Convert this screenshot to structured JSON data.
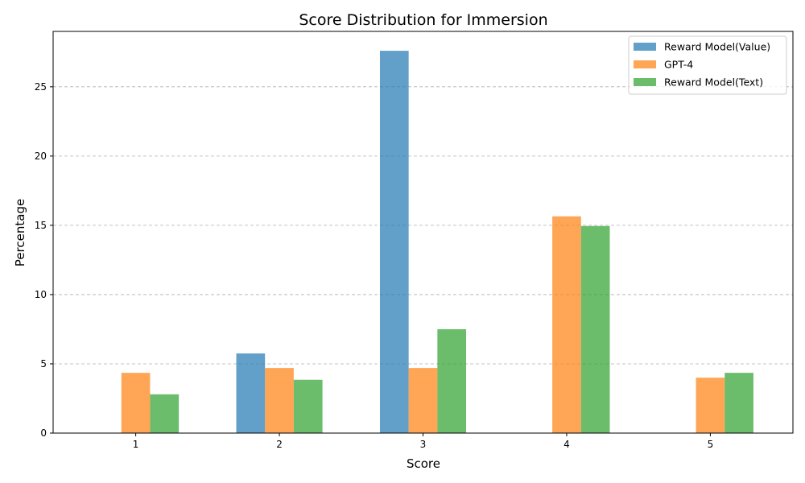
{
  "chart_data": {
    "type": "bar",
    "title": "Score Distribution for Immersion",
    "xlabel": "Score",
    "ylabel": "Percentage",
    "categories": [
      "1",
      "2",
      "3",
      "4",
      "5"
    ],
    "series": [
      {
        "name": "Reward Model(Value)",
        "color": "#1f77b4",
        "values": [
          0,
          5.75,
          27.6,
          0,
          0
        ]
      },
      {
        "name": "GPT-4",
        "color": "#ff7f0e",
        "values": [
          4.35,
          4.7,
          4.7,
          15.65,
          4.0
        ]
      },
      {
        "name": "Reward Model(Text)",
        "color": "#2ca02c",
        "values": [
          2.8,
          3.85,
          7.5,
          14.95,
          4.35
        ]
      }
    ],
    "ylim": [
      0,
      29
    ],
    "yticks": [
      0,
      5,
      10,
      15,
      20,
      25
    ],
    "grid": "y-dashed",
    "legend_position": "top-right",
    "bar_opacity": 0.7
  }
}
